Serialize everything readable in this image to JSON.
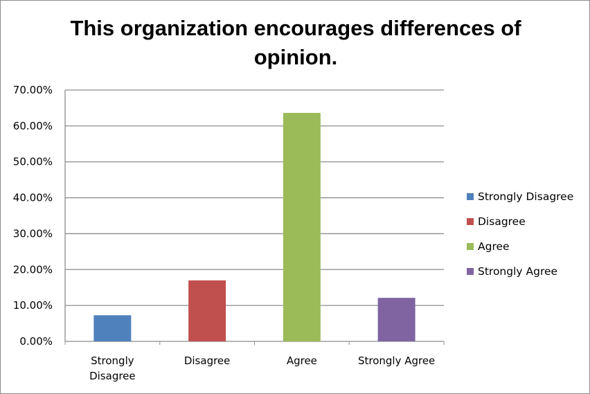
{
  "chart_data": {
    "type": "bar",
    "title_lines": [
      "This organization encourages differences of",
      "opinion."
    ],
    "categories": [
      "Strongly Disagree",
      "Disagree",
      "Agree",
      "Strongly Agree"
    ],
    "category_label_lines": [
      [
        "Strongly",
        "Disagree"
      ],
      [
        "Disagree"
      ],
      [
        "Agree"
      ],
      [
        "Strongly Agree"
      ]
    ],
    "values": [
      7.27,
      16.98,
      63.64,
      12.12
    ],
    "colors": [
      "#4f81bd",
      "#c0504d",
      "#9bbb59",
      "#8064a2"
    ],
    "ylim": [
      0,
      70
    ],
    "yticks": [
      0,
      10,
      20,
      30,
      40,
      50,
      60,
      70
    ],
    "ytick_labels": [
      "0.00%",
      "10.00%",
      "20.00%",
      "30.00%",
      "40.00%",
      "50.00%",
      "60.00%",
      "70.00%"
    ],
    "grid": true,
    "legend": {
      "placement": "right",
      "entries": [
        "Strongly Disagree",
        "Disagree",
        "Agree",
        "Strongly Agree"
      ]
    },
    "xlabel": "",
    "ylabel": ""
  }
}
